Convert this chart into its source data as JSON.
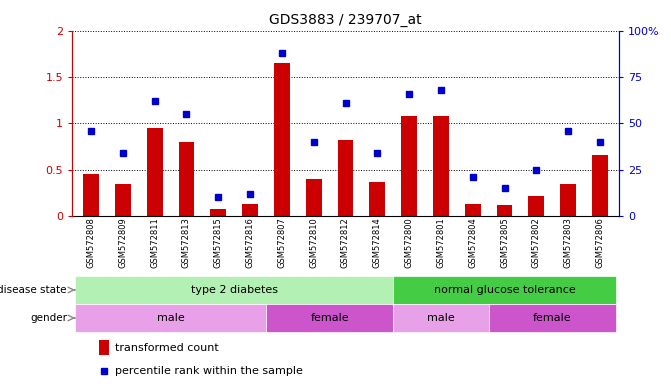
{
  "title": "GDS3883 / 239707_at",
  "samples": [
    "GSM572808",
    "GSM572809",
    "GSM572811",
    "GSM572813",
    "GSM572815",
    "GSM572816",
    "GSM572807",
    "GSM572810",
    "GSM572812",
    "GSM572814",
    "GSM572800",
    "GSM572801",
    "GSM572804",
    "GSM572805",
    "GSM572802",
    "GSM572803",
    "GSM572806"
  ],
  "transformed_count": [
    0.45,
    0.35,
    0.95,
    0.8,
    0.08,
    0.13,
    1.65,
    0.4,
    0.82,
    0.37,
    1.08,
    1.08,
    0.13,
    0.12,
    0.22,
    0.35,
    0.66
  ],
  "percentile_rank": [
    0.46,
    0.34,
    0.62,
    0.55,
    0.1,
    0.12,
    0.88,
    0.4,
    0.61,
    0.34,
    0.66,
    0.68,
    0.21,
    0.15,
    0.25,
    0.46,
    0.4
  ],
  "ylim_left": [
    0,
    2
  ],
  "ylim_right": [
    0,
    100
  ],
  "yticks_left": [
    0,
    0.5,
    1.0,
    1.5,
    2.0
  ],
  "ytick_labels_left": [
    "0",
    "0.5",
    "1",
    "1.5",
    "2"
  ],
  "yticks_right": [
    0,
    25,
    50,
    75,
    100
  ],
  "ytick_labels_right": [
    "0",
    "25",
    "50",
    "75",
    "100%"
  ],
  "bar_color": "#cc0000",
  "dot_color": "#0000cc",
  "disease_green_light": "#b3f0b3",
  "disease_green_dark": "#44cc44",
  "male_color": "#e8a0e8",
  "female_color": "#cc55cc",
  "legend_items": [
    "transformed count",
    "percentile rank within the sample"
  ],
  "legend_colors": [
    "#cc0000",
    "#0000cc"
  ],
  "background_color": "#ffffff",
  "t2d_range": [
    0,
    9
  ],
  "ngt_range": [
    10,
    16
  ],
  "male_t2d_range": [
    0,
    5
  ],
  "female_t2d_range": [
    6,
    9
  ],
  "male_ngt_range": [
    10,
    12
  ],
  "female_ngt_range": [
    13,
    16
  ]
}
